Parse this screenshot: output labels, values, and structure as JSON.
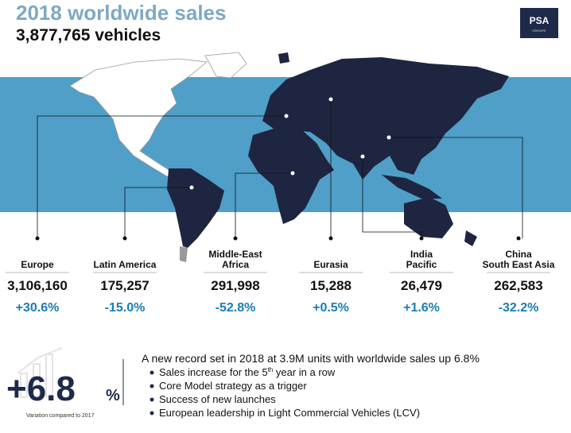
{
  "header": {
    "title": "2018 worldwide sales",
    "subtitle": "3,877,765 vehicles",
    "logo": "PSA",
    "logo_sub": "GROUPE"
  },
  "regions": [
    {
      "name": [
        "Europe"
      ],
      "sales": "3,106,160",
      "variation": "+30.6%"
    },
    {
      "name": [
        "Latin America"
      ],
      "sales": "175,257",
      "variation": "-15.0%"
    },
    {
      "name": [
        "Middle-East",
        "Africa"
      ],
      "sales": "291,998",
      "variation": "-52.8%"
    },
    {
      "name": [
        "Eurasia"
      ],
      "sales": "15,288",
      "variation": "+0.5%"
    },
    {
      "name": [
        "India",
        "Pacific"
      ],
      "sales": "26,479",
      "variation": "+1.6%"
    },
    {
      "name": [
        "China",
        "South East Asia"
      ],
      "sales": "262,583",
      "variation": "-32.2%"
    }
  ],
  "summary": {
    "big": "+6.8",
    "unit": "%",
    "note": "Variation compared to 2017",
    "headline": "A new record set in 2018 at 3.9M units with worldwide sales up 6.8%",
    "bullets": [
      {
        "before": "Sales increase for the 5",
        "sup": "th",
        "after": " year in a row"
      },
      "Core Model strategy as a trigger",
      "Success of new launches",
      "European leadership in Light Commercial Vehicles (LCV)"
    ]
  }
}
